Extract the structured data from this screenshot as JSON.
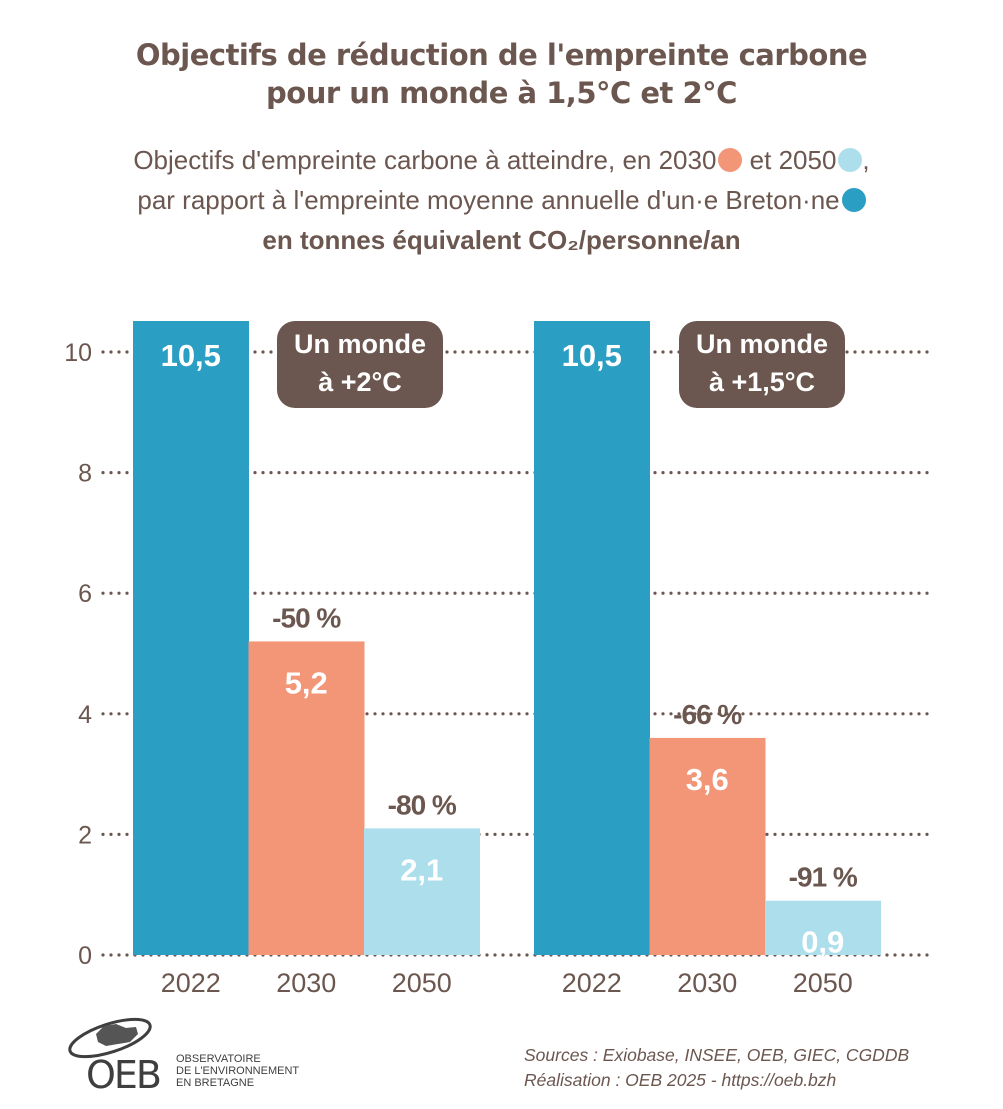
{
  "header": {
    "title_line1": "Objectifs de réduction de l'empreinte carbone",
    "title_line2": "pour un monde à 1,5°C et 2°C",
    "subtitle_line1_a": "Objectifs d'empreinte  carbone à atteindre, en 2030",
    "subtitle_line1_b": " et 2050",
    "subtitle_line1_c": ",",
    "subtitle_line2": "par rapport à l'empreinte moyenne annuelle d'un·e Breton·ne",
    "subtitle_line3": "en tonnes équivalent CO₂/personne/an"
  },
  "colors": {
    "y2022": "#2b9ec4",
    "y2030": "#f29677",
    "y2050": "#addeec",
    "text": "#6b574f",
    "badge": "#6b574f"
  },
  "chart_data": {
    "type": "bar",
    "title": "Objectifs de réduction de l'empreinte carbone pour un monde à 1,5°C et 2°C",
    "subtitle": "Objectifs d'empreinte carbone à atteindre, en 2030 et 2050, par rapport à l'empreinte moyenne annuelle d'un·e Breton·ne",
    "ylabel": "en tonnes équivalent CO₂/personne/an",
    "xlabel": "",
    "ylim": [
      0,
      10.5
    ],
    "yticks": [
      0,
      2,
      4,
      6,
      8,
      10
    ],
    "grid": true,
    "categories": [
      "2022",
      "2030",
      "2050"
    ],
    "groups": [
      {
        "name": "Un monde à +2°C",
        "badge_line1": "Un monde",
        "badge_line2": "à +2°C",
        "values": [
          10.5,
          5.2,
          2.1
        ],
        "value_labels": [
          "10,5",
          "5,2",
          "2,1"
        ],
        "reduction_labels": [
          "",
          "-50 %",
          "-80 %"
        ]
      },
      {
        "name": "Un monde à +1,5°C",
        "badge_line1": "Un monde",
        "badge_line2": "à +1,5°C",
        "values": [
          10.5,
          3.6,
          0.9
        ],
        "value_labels": [
          "10,5",
          "3,6",
          "0,9"
        ],
        "reduction_labels": [
          "",
          "-66 %",
          "-91 %"
        ]
      }
    ]
  },
  "footer": {
    "sources": "Sources : Exiobase, INSEE, OEB, GIEC, CGDDB",
    "credit": "Réalisation : OEB 2025 - https://oeb.bzh",
    "logo_text": "OEB",
    "logo_sub1": "OBSERVATOIRE",
    "logo_sub2": "DE L'ENVIRONNEMENT",
    "logo_sub3": "EN BRETAGNE"
  }
}
